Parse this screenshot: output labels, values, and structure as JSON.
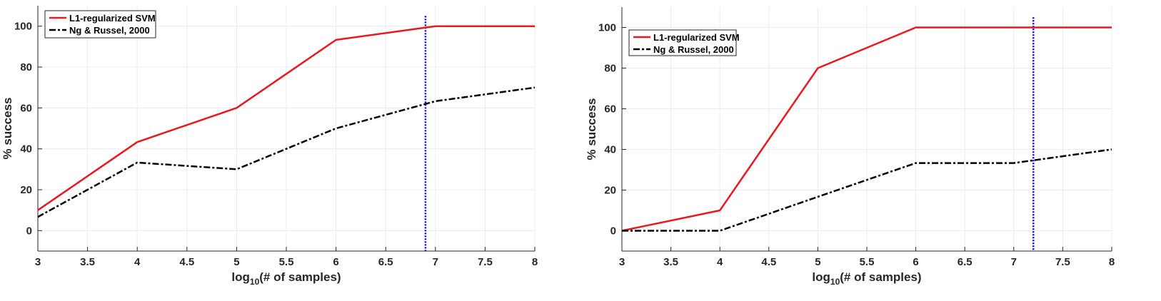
{
  "chart_data": [
    {
      "type": "line",
      "xlabel": {
        "prefix": "log",
        "sub": "10",
        "suffix": "(# of samples)"
      },
      "ylabel": "% success",
      "xlim": [
        3,
        8
      ],
      "ylim": [
        -10,
        110
      ],
      "xticks": [
        3,
        3.5,
        4,
        4.5,
        5,
        5.5,
        6,
        6.5,
        7,
        7.5,
        8
      ],
      "yticks": [
        0,
        20,
        40,
        60,
        80,
        100
      ],
      "grid": true,
      "legend_position": "top-left",
      "vline": {
        "x": 6.9,
        "color": "#0000cc"
      },
      "series": [
        {
          "name": "L1-regularized SVM",
          "color": "#e8191e",
          "style": "solid",
          "x": [
            3,
            4,
            5,
            6,
            7,
            8
          ],
          "y": [
            10,
            43.3,
            60,
            93.3,
            100,
            100
          ]
        },
        {
          "name": "Ng & Russel, 2000",
          "color": "#000000",
          "style": "dashdot",
          "x": [
            3,
            4,
            5,
            6,
            7,
            8
          ],
          "y": [
            6.7,
            33.3,
            30,
            50,
            63.3,
            70
          ]
        }
      ]
    },
    {
      "type": "line",
      "xlabel": {
        "prefix": "log",
        "sub": "10",
        "suffix": "(# of samples)"
      },
      "ylabel": "% success",
      "xlim": [
        3,
        8
      ],
      "ylim": [
        -10,
        110
      ],
      "xticks": [
        3,
        3.5,
        4,
        4.5,
        5,
        5.5,
        6,
        6.5,
        7,
        7.5,
        8
      ],
      "yticks": [
        0,
        20,
        40,
        60,
        80,
        100
      ],
      "grid": true,
      "legend_position": "top-left",
      "vline": {
        "x": 7.2,
        "color": "#0000cc"
      },
      "series": [
        {
          "name": "L1-regularized SVM",
          "color": "#e8191e",
          "style": "solid",
          "x": [
            3,
            4,
            5,
            6,
            7,
            8
          ],
          "y": [
            0,
            10,
            80,
            100,
            100,
            100
          ]
        },
        {
          "name": "Ng & Russel, 2000",
          "color": "#000000",
          "style": "dashdot",
          "x": [
            3,
            4,
            5,
            6,
            7,
            8
          ],
          "y": [
            0,
            0,
            16.7,
            33.3,
            33.3,
            40
          ]
        }
      ]
    }
  ]
}
